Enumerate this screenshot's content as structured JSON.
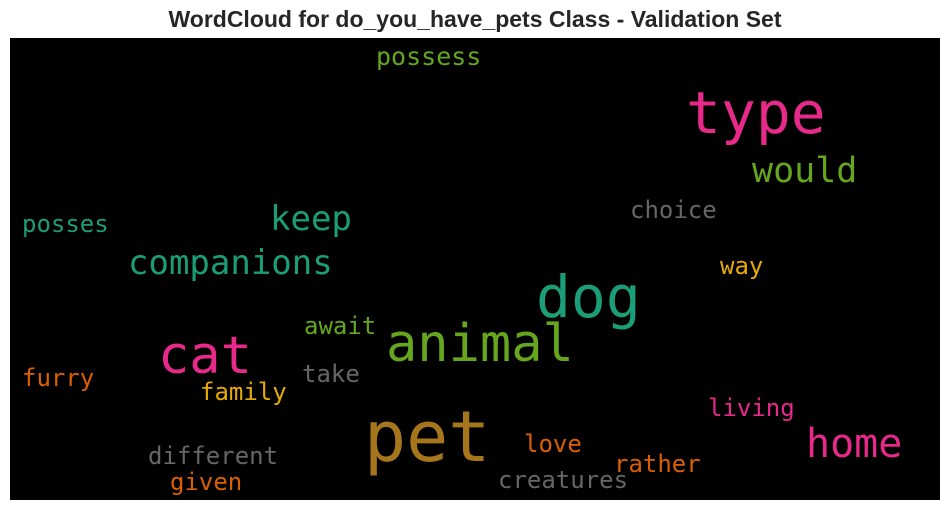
{
  "title": "WordCloud for do_you_have_pets Class - Validation Set",
  "words": {
    "possess": {
      "text": "possess",
      "color": "#66a61e"
    },
    "type": {
      "text": "type",
      "color": "#e7298a"
    },
    "would": {
      "text": "would",
      "color": "#66a61e"
    },
    "choice": {
      "text": "choice",
      "color": "#666666"
    },
    "posses": {
      "text": "posses",
      "color": "#1b9e77"
    },
    "keep": {
      "text": "keep",
      "color": "#1b9e77"
    },
    "companions": {
      "text": "companions",
      "color": "#1b9e77"
    },
    "way": {
      "text": "way",
      "color": "#e6ab02"
    },
    "dog": {
      "text": "dog",
      "color": "#1b9e77"
    },
    "await": {
      "text": "await",
      "color": "#66a61e"
    },
    "animal": {
      "text": "animal",
      "color": "#66a61e"
    },
    "cat": {
      "text": "cat",
      "color": "#e7298a"
    },
    "furry": {
      "text": "furry",
      "color": "#d95f02"
    },
    "take": {
      "text": "take",
      "color": "#666666"
    },
    "family": {
      "text": "family",
      "color": "#e6ab02"
    },
    "living": {
      "text": "living",
      "color": "#e7298a"
    },
    "pet": {
      "text": "pet",
      "color": "#a6761d"
    },
    "home": {
      "text": "home",
      "color": "#e7298a"
    },
    "different": {
      "text": "different",
      "color": "#666666"
    },
    "love": {
      "text": "love",
      "color": "#d95f02"
    },
    "rather": {
      "text": "rather",
      "color": "#d95f02"
    },
    "given": {
      "text": "given",
      "color": "#d95f02"
    },
    "creatures": {
      "text": "creatures",
      "color": "#666666"
    }
  }
}
